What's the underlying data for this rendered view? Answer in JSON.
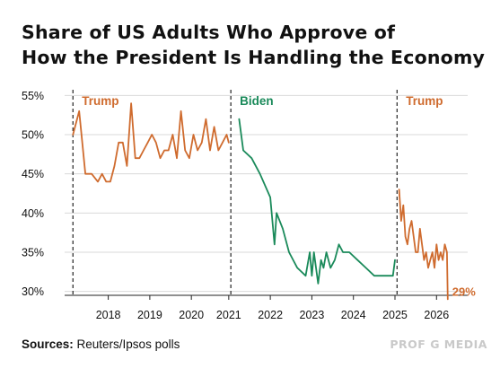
{
  "title_lines": [
    "Share of US Adults Who Approve of",
    "How the President Is Handling the Economy"
  ],
  "source": {
    "label": "Sources:",
    "text": " Reuters/Ipsos polls"
  },
  "brand": "PROF G MEDIA",
  "chart_data": {
    "type": "line",
    "y_tick_labels": [
      "30%",
      "35%",
      "40%",
      "45%",
      "50%",
      "55%"
    ],
    "y_ticks": [
      30,
      35,
      40,
      45,
      50,
      55
    ],
    "ylim": [
      29.5,
      55.5
    ],
    "xlim": [
      2017.05,
      2026.75
    ],
    "x_ticks": [
      2018,
      2019,
      2020,
      2021,
      2022,
      2023,
      2024,
      2025,
      2026
    ],
    "x_tick_labels": [
      "2018",
      "2019",
      "2020",
      "2021",
      "2022",
      "2023",
      "2024",
      "2025",
      "2026"
    ],
    "x_tick_positions": [
      2018.1,
      2019.1,
      2020.1,
      2021.0,
      2022.0,
      2023.0,
      2024.0,
      2025.0,
      2026.0
    ],
    "grid": true,
    "dividers": [
      {
        "x": 2017.25,
        "label": "Trump"
      },
      {
        "x": 2021.05,
        "label": "Biden"
      },
      {
        "x": 2025.05,
        "label": "Trump"
      }
    ],
    "colors": {
      "trump": "#cf6b2e",
      "biden": "#1a8a5a",
      "grid": "#d9d9d9",
      "axis": "#222222",
      "text": "#111111"
    },
    "end_label": "29%",
    "series": [
      {
        "color_key": "trump",
        "x": [
          2017.25,
          2017.4,
          2017.55,
          2017.7,
          2017.85,
          2017.95,
          2018.05,
          2018.15,
          2018.25,
          2018.35,
          2018.45,
          2018.55,
          2018.65,
          2018.75,
          2018.85,
          2018.95,
          2019.05,
          2019.15,
          2019.25,
          2019.35,
          2019.45,
          2019.55,
          2019.65,
          2019.75,
          2019.85,
          2019.95,
          2020.05,
          2020.15,
          2020.25,
          2020.35,
          2020.45,
          2020.55,
          2020.65,
          2020.75,
          2020.85,
          2020.95,
          2021.0
        ],
        "y": [
          50,
          53,
          45,
          45,
          44,
          45,
          44,
          44,
          46,
          49,
          49,
          46,
          54,
          47,
          47,
          48,
          49,
          50,
          49,
          47,
          48,
          48,
          50,
          47,
          53,
          48,
          47,
          50,
          48,
          49,
          52,
          48,
          51,
          48,
          49,
          50,
          49
        ]
      },
      {
        "color_key": "biden",
        "x": [
          2021.25,
          2021.35,
          2021.55,
          2021.75,
          2022.0,
          2022.1,
          2022.15,
          2022.3,
          2022.45,
          2022.65,
          2022.85,
          2022.95,
          2023.0,
          2023.05,
          2023.15,
          2023.22,
          2023.28,
          2023.35,
          2023.45,
          2023.55,
          2023.65,
          2023.75,
          2023.9,
          2024.1,
          2024.3,
          2024.5,
          2024.75,
          2024.95,
          2025.0
        ],
        "y": [
          52,
          48,
          47,
          45,
          42,
          36,
          40,
          38,
          35,
          33,
          32,
          35,
          32,
          35,
          31,
          34,
          33,
          35,
          33,
          34,
          36,
          35,
          35,
          34,
          33,
          32,
          32,
          32,
          34
        ]
      },
      {
        "color_key": "trump",
        "x": [
          2025.1,
          2025.15,
          2025.2,
          2025.25,
          2025.3,
          2025.35,
          2025.4,
          2025.45,
          2025.5,
          2025.55,
          2025.6,
          2025.65,
          2025.7,
          2025.75,
          2025.8,
          2025.85,
          2025.9,
          2025.95,
          2026.0,
          2026.05,
          2026.1,
          2026.15,
          2026.2,
          2026.25,
          2026.27
        ],
        "y": [
          43,
          39,
          41,
          37,
          36,
          38,
          39,
          37,
          35,
          35,
          38,
          36,
          34,
          35,
          33,
          34,
          35,
          33,
          36,
          34,
          35,
          34,
          36,
          35,
          29
        ]
      }
    ]
  }
}
